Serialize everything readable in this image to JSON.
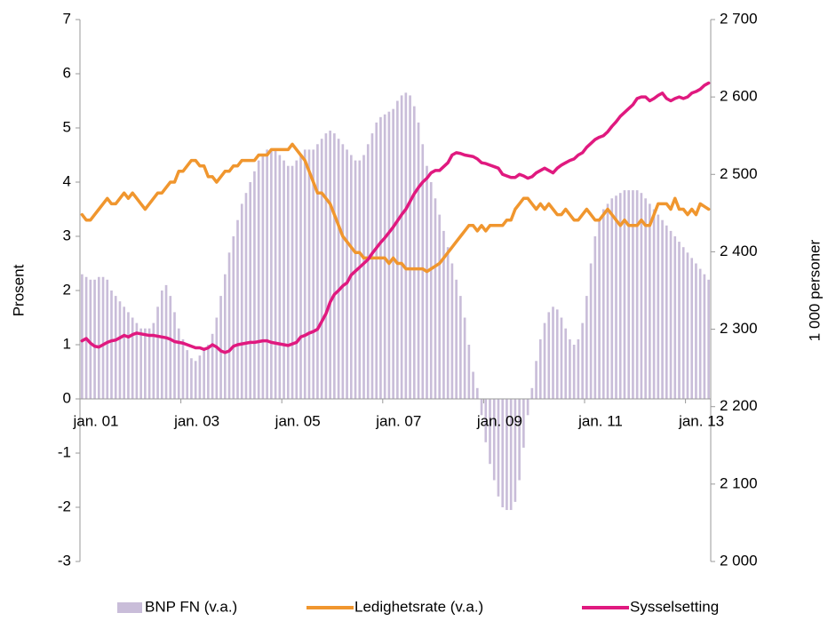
{
  "chart_data": {
    "type": "bar-line-dual",
    "ylabel": "Prosent",
    "y2label": "1 000 personer",
    "ylim": [
      -3,
      7
    ],
    "yticks": [
      -3,
      -2,
      -1,
      0,
      1,
      2,
      3,
      4,
      5,
      6,
      7
    ],
    "y2lim": [
      2000,
      2700
    ],
    "y2ticks": [
      {
        "value": 2000,
        "label": "2 000"
      },
      {
        "value": 2100,
        "label": "2 100"
      },
      {
        "value": 2200,
        "label": "2 200"
      },
      {
        "value": 2300,
        "label": "2 300"
      },
      {
        "value": 2400,
        "label": "2 400"
      },
      {
        "value": 2500,
        "label": "2 500"
      },
      {
        "value": 2600,
        "label": "2 600"
      },
      {
        "value": 2700,
        "label": "2 700"
      }
    ],
    "categories": [
      "jan. 01",
      null,
      null,
      null,
      null,
      null,
      null,
      null,
      null,
      null,
      null,
      null,
      null,
      null,
      null,
      null,
      null,
      null,
      null,
      null,
      null,
      null,
      null,
      null,
      "jan. 03",
      null,
      null,
      null,
      null,
      null,
      null,
      null,
      null,
      null,
      null,
      null,
      null,
      null,
      null,
      null,
      null,
      null,
      null,
      null,
      null,
      null,
      null,
      null,
      "jan. 05",
      null,
      null,
      null,
      null,
      null,
      null,
      null,
      null,
      null,
      null,
      null,
      null,
      null,
      null,
      null,
      null,
      null,
      null,
      null,
      null,
      null,
      null,
      null,
      "jan. 07",
      null,
      null,
      null,
      null,
      null,
      null,
      null,
      null,
      null,
      null,
      null,
      null,
      null,
      null,
      null,
      null,
      null,
      null,
      null,
      null,
      null,
      null,
      null,
      "jan. 09",
      null,
      null,
      null,
      null,
      null,
      null,
      null,
      null,
      null,
      null,
      null,
      null,
      null,
      null,
      null,
      null,
      null,
      null,
      null,
      null,
      null,
      null,
      null,
      "jan. 11",
      null,
      null,
      null,
      null,
      null,
      null,
      null,
      null,
      null,
      null,
      null,
      null,
      null,
      null,
      null,
      null,
      null,
      null,
      null,
      null,
      null,
      null,
      null,
      "jan. 13",
      null,
      null,
      null,
      null,
      null
    ],
    "series": [
      {
        "name": "BNP FN (v.a.)",
        "kind": "bar",
        "color": "#c9bdd9",
        "values": [
          2.3,
          2.25,
          2.2,
          2.2,
          2.25,
          2.25,
          2.2,
          2.0,
          1.9,
          1.8,
          1.7,
          1.6,
          1.5,
          1.4,
          1.3,
          1.3,
          1.3,
          1.4,
          1.7,
          2.0,
          2.1,
          1.9,
          1.6,
          1.3,
          1.1,
          0.9,
          0.75,
          0.7,
          0.8,
          0.9,
          1.0,
          1.2,
          1.5,
          1.9,
          2.3,
          2.7,
          3.0,
          3.3,
          3.6,
          3.8,
          4.0,
          4.2,
          4.4,
          4.5,
          4.6,
          4.6,
          4.6,
          4.5,
          4.4,
          4.3,
          4.3,
          4.4,
          4.5,
          4.6,
          4.6,
          4.6,
          4.7,
          4.8,
          4.9,
          4.95,
          4.9,
          4.8,
          4.7,
          4.6,
          4.5,
          4.4,
          4.4,
          4.5,
          4.7,
          4.9,
          5.1,
          5.2,
          5.25,
          5.3,
          5.35,
          5.5,
          5.6,
          5.65,
          5.6,
          5.4,
          5.1,
          4.7,
          4.3,
          4.0,
          3.7,
          3.4,
          3.1,
          2.8,
          2.5,
          2.2,
          1.9,
          1.5,
          1.0,
          0.5,
          0.2,
          -0.3,
          -0.8,
          -1.2,
          -1.5,
          -1.8,
          -2.0,
          -2.05,
          -2.05,
          -1.9,
          -1.5,
          -0.9,
          -0.3,
          0.2,
          0.7,
          1.1,
          1.4,
          1.6,
          1.7,
          1.65,
          1.5,
          1.3,
          1.1,
          1.0,
          1.1,
          1.4,
          1.9,
          2.5,
          3.0,
          3.3,
          3.5,
          3.6,
          3.7,
          3.75,
          3.8,
          3.85,
          3.85,
          3.85,
          3.85,
          3.8,
          3.7,
          3.6,
          3.5,
          3.4,
          3.3,
          3.2,
          3.1,
          3.0,
          2.9,
          2.8,
          2.7,
          2.6,
          2.5,
          2.4,
          2.3,
          2.2
        ]
      },
      {
        "name": "Ledighetsrate (v.a.)",
        "kind": "line",
        "color": "#f0962e",
        "values": [
          3.4,
          3.3,
          3.3,
          3.4,
          3.5,
          3.6,
          3.7,
          3.6,
          3.6,
          3.7,
          3.8,
          3.7,
          3.8,
          3.7,
          3.6,
          3.5,
          3.6,
          3.7,
          3.8,
          3.8,
          3.9,
          4.0,
          4.0,
          4.2,
          4.2,
          4.3,
          4.4,
          4.4,
          4.3,
          4.3,
          4.1,
          4.1,
          4.0,
          4.1,
          4.2,
          4.2,
          4.3,
          4.3,
          4.4,
          4.4,
          4.4,
          4.4,
          4.5,
          4.5,
          4.5,
          4.6,
          4.6,
          4.6,
          4.6,
          4.6,
          4.7,
          4.6,
          4.5,
          4.4,
          4.2,
          4.0,
          3.8,
          3.8,
          3.7,
          3.6,
          3.4,
          3.2,
          3.0,
          2.9,
          2.8,
          2.7,
          2.7,
          2.6,
          2.6,
          2.6,
          2.6,
          2.6,
          2.6,
          2.5,
          2.6,
          2.5,
          2.5,
          2.4,
          2.4,
          2.4,
          2.4,
          2.4,
          2.35,
          2.4,
          2.45,
          2.5,
          2.6,
          2.7,
          2.8,
          2.9,
          3.0,
          3.1,
          3.2,
          3.2,
          3.1,
          3.2,
          3.1,
          3.2,
          3.2,
          3.2,
          3.2,
          3.3,
          3.3,
          3.5,
          3.6,
          3.7,
          3.7,
          3.6,
          3.5,
          3.6,
          3.5,
          3.6,
          3.5,
          3.4,
          3.4,
          3.5,
          3.4,
          3.3,
          3.3,
          3.4,
          3.5,
          3.4,
          3.3,
          3.3,
          3.4,
          3.5,
          3.4,
          3.3,
          3.2,
          3.3,
          3.2,
          3.2,
          3.2,
          3.3,
          3.2,
          3.2,
          3.4,
          3.6,
          3.6,
          3.6,
          3.5,
          3.7,
          3.5,
          3.5,
          3.4,
          3.5,
          3.4,
          3.6,
          3.55,
          3.5
        ]
      },
      {
        "name": "Sysselsetting",
        "kind": "line",
        "axis": "y2",
        "color": "#e0197f",
        "values": [
          2285,
          2288,
          2282,
          2278,
          2277,
          2280,
          2283,
          2285,
          2286,
          2289,
          2292,
          2290,
          2293,
          2295,
          2294,
          2293,
          2292,
          2292,
          2291,
          2290,
          2289,
          2287,
          2284,
          2283,
          2282,
          2280,
          2278,
          2276,
          2276,
          2274,
          2276,
          2280,
          2277,
          2272,
          2270,
          2272,
          2278,
          2280,
          2281,
          2282,
          2283,
          2283,
          2284,
          2285,
          2285,
          2283,
          2282,
          2281,
          2280,
          2279,
          2281,
          2283,
          2290,
          2292,
          2295,
          2297,
          2300,
          2310,
          2320,
          2335,
          2345,
          2350,
          2356,
          2360,
          2370,
          2375,
          2380,
          2385,
          2390,
          2398,
          2405,
          2412,
          2418,
          2425,
          2432,
          2440,
          2448,
          2455,
          2465,
          2475,
          2483,
          2490,
          2495,
          2502,
          2505,
          2505,
          2510,
          2515,
          2525,
          2528,
          2527,
          2525,
          2524,
          2523,
          2520,
          2515,
          2514,
          2512,
          2510,
          2508,
          2500,
          2498,
          2496,
          2496,
          2500,
          2498,
          2495,
          2497,
          2502,
          2505,
          2508,
          2505,
          2502,
          2508,
          2512,
          2515,
          2518,
          2520,
          2525,
          2528,
          2535,
          2540,
          2545,
          2548,
          2550,
          2555,
          2562,
          2568,
          2575,
          2580,
          2585,
          2590,
          2598,
          2600,
          2600,
          2595,
          2598,
          2602,
          2605,
          2598,
          2595,
          2598,
          2600,
          2598,
          2600,
          2605,
          2607,
          2610,
          2615,
          2618
        ]
      }
    ]
  }
}
